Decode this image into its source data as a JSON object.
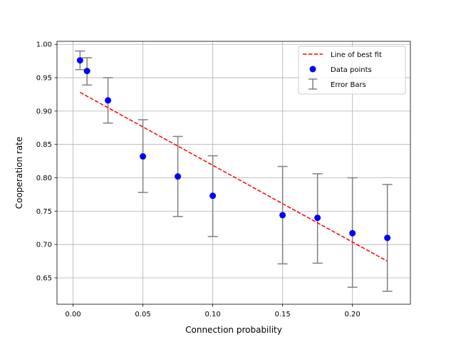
{
  "chart_data": {
    "type": "scatter",
    "title": "",
    "xlabel": "Connection probability",
    "ylabel": "Cooperation rate",
    "xlim": [
      -0.0115,
      0.2415
    ],
    "ylim": [
      0.6105,
      1.0045
    ],
    "grid": true,
    "x_ticks": [
      0.0,
      0.05,
      0.1,
      0.15,
      0.2
    ],
    "x_tick_labels": [
      "0.00",
      "0.05",
      "0.10",
      "0.15",
      "0.20"
    ],
    "y_ticks": [
      0.65,
      0.7,
      0.75,
      0.8,
      0.85,
      0.9,
      0.95,
      1.0
    ],
    "y_tick_labels": [
      "0.65",
      "0.70",
      "0.75",
      "0.80",
      "0.85",
      "0.90",
      "0.95",
      "1.00"
    ],
    "legend_position": "top-right",
    "legend": [
      {
        "label": "Line of best fit",
        "kind": "dashed-line",
        "color": "#ff0000"
      },
      {
        "label": "Data points",
        "kind": "marker",
        "color": "#0000ff"
      },
      {
        "label": "Error Bars",
        "kind": "errorbar",
        "color": "#808080"
      }
    ],
    "series": [
      {
        "name": "Data points",
        "color": "#0000ff",
        "x": [
          0.005,
          0.01,
          0.025,
          0.05,
          0.075,
          0.1,
          0.15,
          0.175,
          0.2,
          0.225
        ],
        "y": [
          0.976,
          0.96,
          0.916,
          0.832,
          0.802,
          0.773,
          0.744,
          0.74,
          0.717,
          0.71
        ],
        "err_low": [
          0.962,
          0.939,
          0.882,
          0.778,
          0.742,
          0.712,
          0.671,
          0.672,
          0.636,
          0.63
        ],
        "err_high": [
          0.99,
          0.98,
          0.95,
          0.887,
          0.862,
          0.833,
          0.817,
          0.806,
          0.8,
          0.79
        ]
      },
      {
        "name": "Line of best fit",
        "color": "#ff0000",
        "x": [
          0.005,
          0.225
        ],
        "y": [
          0.928,
          0.675
        ]
      }
    ],
    "errorbar_color": "#808080"
  }
}
